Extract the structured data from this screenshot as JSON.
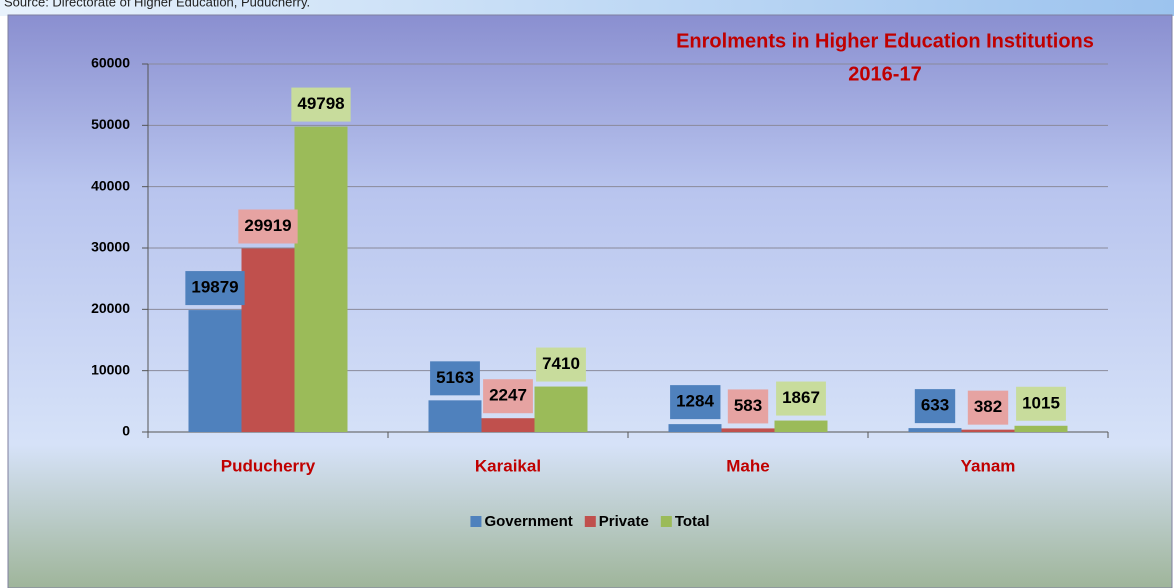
{
  "source": "Source: Directorate of Higher Education, Puducherry.",
  "chart_data": {
    "type": "bar",
    "title": "Enrolments in Higher Education Institutions",
    "subtitle": "2016-17",
    "categories": [
      "Puducherry",
      "Karaikal",
      "Mahe",
      "Yanam"
    ],
    "series": [
      {
        "name": "Government",
        "color": "#4f81bd",
        "label_bg": "#4f81bd",
        "values": [
          19879,
          5163,
          1284,
          633
        ]
      },
      {
        "name": "Private",
        "color": "#c0504d",
        "label_bg": "#e6a3a2",
        "values": [
          29919,
          2247,
          583,
          382
        ]
      },
      {
        "name": "Total",
        "color": "#9bbb59",
        "label_bg": "#c8dc9c",
        "values": [
          49798,
          7410,
          1867,
          1015
        ]
      }
    ],
    "ylim": [
      0,
      60000
    ],
    "yticks": [
      0,
      10000,
      20000,
      30000,
      40000,
      50000,
      60000
    ],
    "grid": true,
    "legend": "bottom"
  }
}
